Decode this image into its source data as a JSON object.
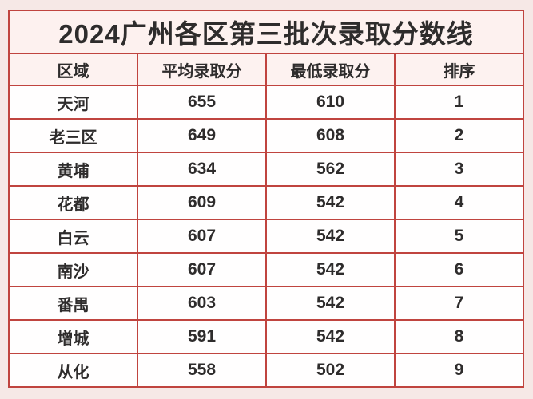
{
  "title": "2024广州各区第三批次录取分数线",
  "colors": {
    "page_background": "#f6e8e6",
    "border_red": "#c0443f",
    "title_background": "#fdf1ef",
    "header_background": "#fdf2f0",
    "cell_background": "#fffefe",
    "text": "#2e2c2c"
  },
  "chart_data": {
    "type": "table",
    "title": "2024广州各区第三批次录取分数线",
    "headers": [
      "区域",
      "平均录取分",
      "最低录取分",
      "排序"
    ],
    "rows": [
      [
        "天河",
        "655",
        "610",
        "1"
      ],
      [
        "老三区",
        "649",
        "608",
        "2"
      ],
      [
        "黄埔",
        "634",
        "562",
        "3"
      ],
      [
        "花都",
        "609",
        "542",
        "4"
      ],
      [
        "白云",
        "607",
        "542",
        "5"
      ],
      [
        "南沙",
        "607",
        "542",
        "6"
      ],
      [
        "番禺",
        "603",
        "542",
        "7"
      ],
      [
        "增城",
        "591",
        "542",
        "8"
      ],
      [
        "从化",
        "558",
        "502",
        "9"
      ]
    ]
  }
}
